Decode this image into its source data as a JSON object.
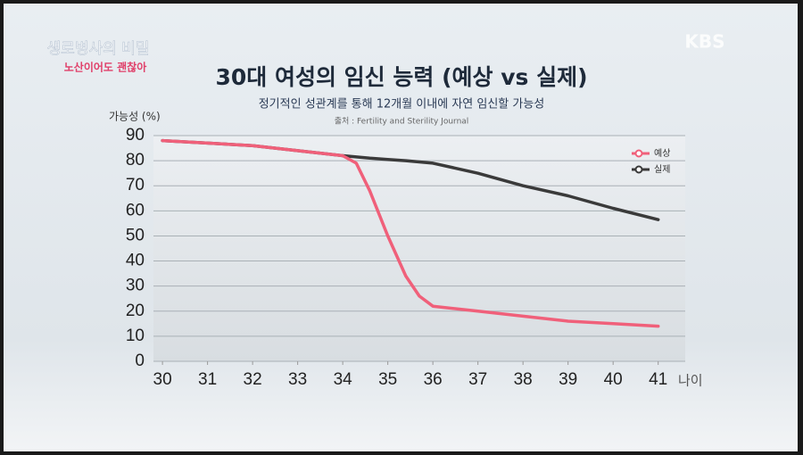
{
  "broadcast": {
    "logo": "KBS",
    "program": "생로병사의 비밀",
    "caption": "노산이어도 괜찮아"
  },
  "chart_data": {
    "type": "line",
    "title": "30대 여성의 임신 능력 (예상 vs 실제)",
    "subtitle": "정기적인 성관계를 통해 12개월 이내에 자연 임신할 가능성",
    "source": "출처 : Fertility and Sterility Journal",
    "y_label": "가능성 (%)",
    "x_label": "나이",
    "x": [
      30,
      31,
      32,
      33,
      34,
      34.3,
      34.6,
      35,
      35.4,
      35.7,
      36,
      37,
      38,
      39,
      40,
      41
    ],
    "series": [
      {
        "name": "예상",
        "color": "#f0607a",
        "values": [
          88,
          87,
          86,
          84,
          82,
          79,
          68,
          50,
          34,
          26,
          22,
          20,
          18,
          16,
          15,
          14
        ]
      },
      {
        "name": "실제",
        "color": "#3a3a3a",
        "values": [
          88,
          87,
          86,
          84,
          82,
          81.5,
          81,
          80.5,
          80,
          79.5,
          79,
          75,
          70,
          66,
          61,
          56.5
        ]
      }
    ],
    "xlim": [
      29.8,
      41.6
    ],
    "ylim": [
      0,
      90
    ],
    "xticks": [
      30,
      31,
      32,
      33,
      34,
      35,
      36,
      37,
      38,
      39,
      40,
      41
    ],
    "yticks": [
      0,
      10,
      20,
      30,
      40,
      50,
      60,
      70,
      80,
      90
    ],
    "grid": true,
    "legend": "top-right"
  }
}
